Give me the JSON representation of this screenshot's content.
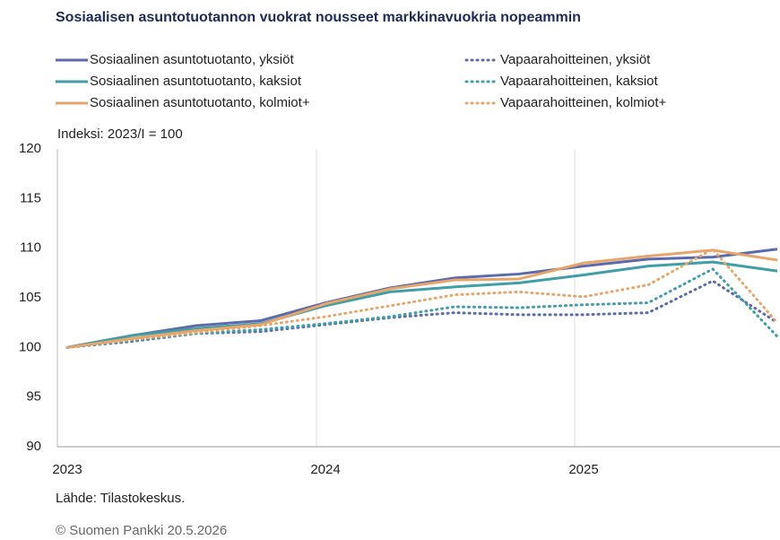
{
  "chart_data": {
    "type": "line",
    "title": "Sosiaalisen asuntotuotannon vuokrat nousseet markkinavuokria nopeammin",
    "y_label": "Indeksi: 2023/I = 100",
    "source": "Lähde: Tilastokeskus.",
    "copyright": "© Suomen Pankki 20.5.2026",
    "categories": [
      "2023",
      null,
      null,
      null,
      "2024",
      null,
      null,
      null,
      "2025",
      null,
      null,
      null
    ],
    "ylim": [
      90,
      120
    ],
    "yticks": [
      90,
      95,
      100,
      105,
      110,
      115,
      120
    ],
    "series": [
      {
        "name": "Sosiaalinen asuntotuotanto, yksiöt",
        "color": "#5b6aad",
        "style": "solid",
        "values": [
          100,
          101.2,
          102.2,
          102.7,
          104.5,
          106.0,
          107.0,
          107.4,
          108.2,
          108.9,
          109.1,
          109.9
        ]
      },
      {
        "name": "Sosiaalinen asuntotuotanto, kaksiot",
        "color": "#3f9ea6",
        "style": "solid",
        "values": [
          100,
          101.2,
          101.9,
          102.4,
          104.2,
          105.6,
          106.1,
          106.5,
          107.3,
          108.2,
          108.6,
          107.7
        ]
      },
      {
        "name": "Sosiaalinen asuntotuotanto, kolmiot+",
        "color": "#e8a56a",
        "style": "solid",
        "values": [
          100,
          100.9,
          101.7,
          102.3,
          104.4,
          105.9,
          106.8,
          106.9,
          108.5,
          109.2,
          109.8,
          108.8
        ]
      },
      {
        "name": "Vapaarahoitteinen, yksiöt",
        "color": "#5b6aad",
        "style": "dotted",
        "values": [
          100,
          100.6,
          101.4,
          101.6,
          102.3,
          103.0,
          103.5,
          103.3,
          103.3,
          103.5,
          106.7,
          102.5
        ]
      },
      {
        "name": "Vapaarahoitteinen, kaksiot",
        "color": "#3f9ea6",
        "style": "dotted",
        "values": [
          100,
          100.7,
          101.4,
          101.8,
          102.4,
          103.1,
          104.1,
          104.0,
          104.3,
          104.5,
          107.9,
          101.1
        ]
      },
      {
        "name": "Vapaarahoitteinen, kolmiot+",
        "color": "#e8a56a",
        "style": "dotted",
        "values": [
          100,
          100.8,
          101.5,
          102.2,
          103.1,
          104.2,
          105.3,
          105.6,
          105.1,
          106.3,
          109.9,
          102.5
        ]
      }
    ]
  }
}
